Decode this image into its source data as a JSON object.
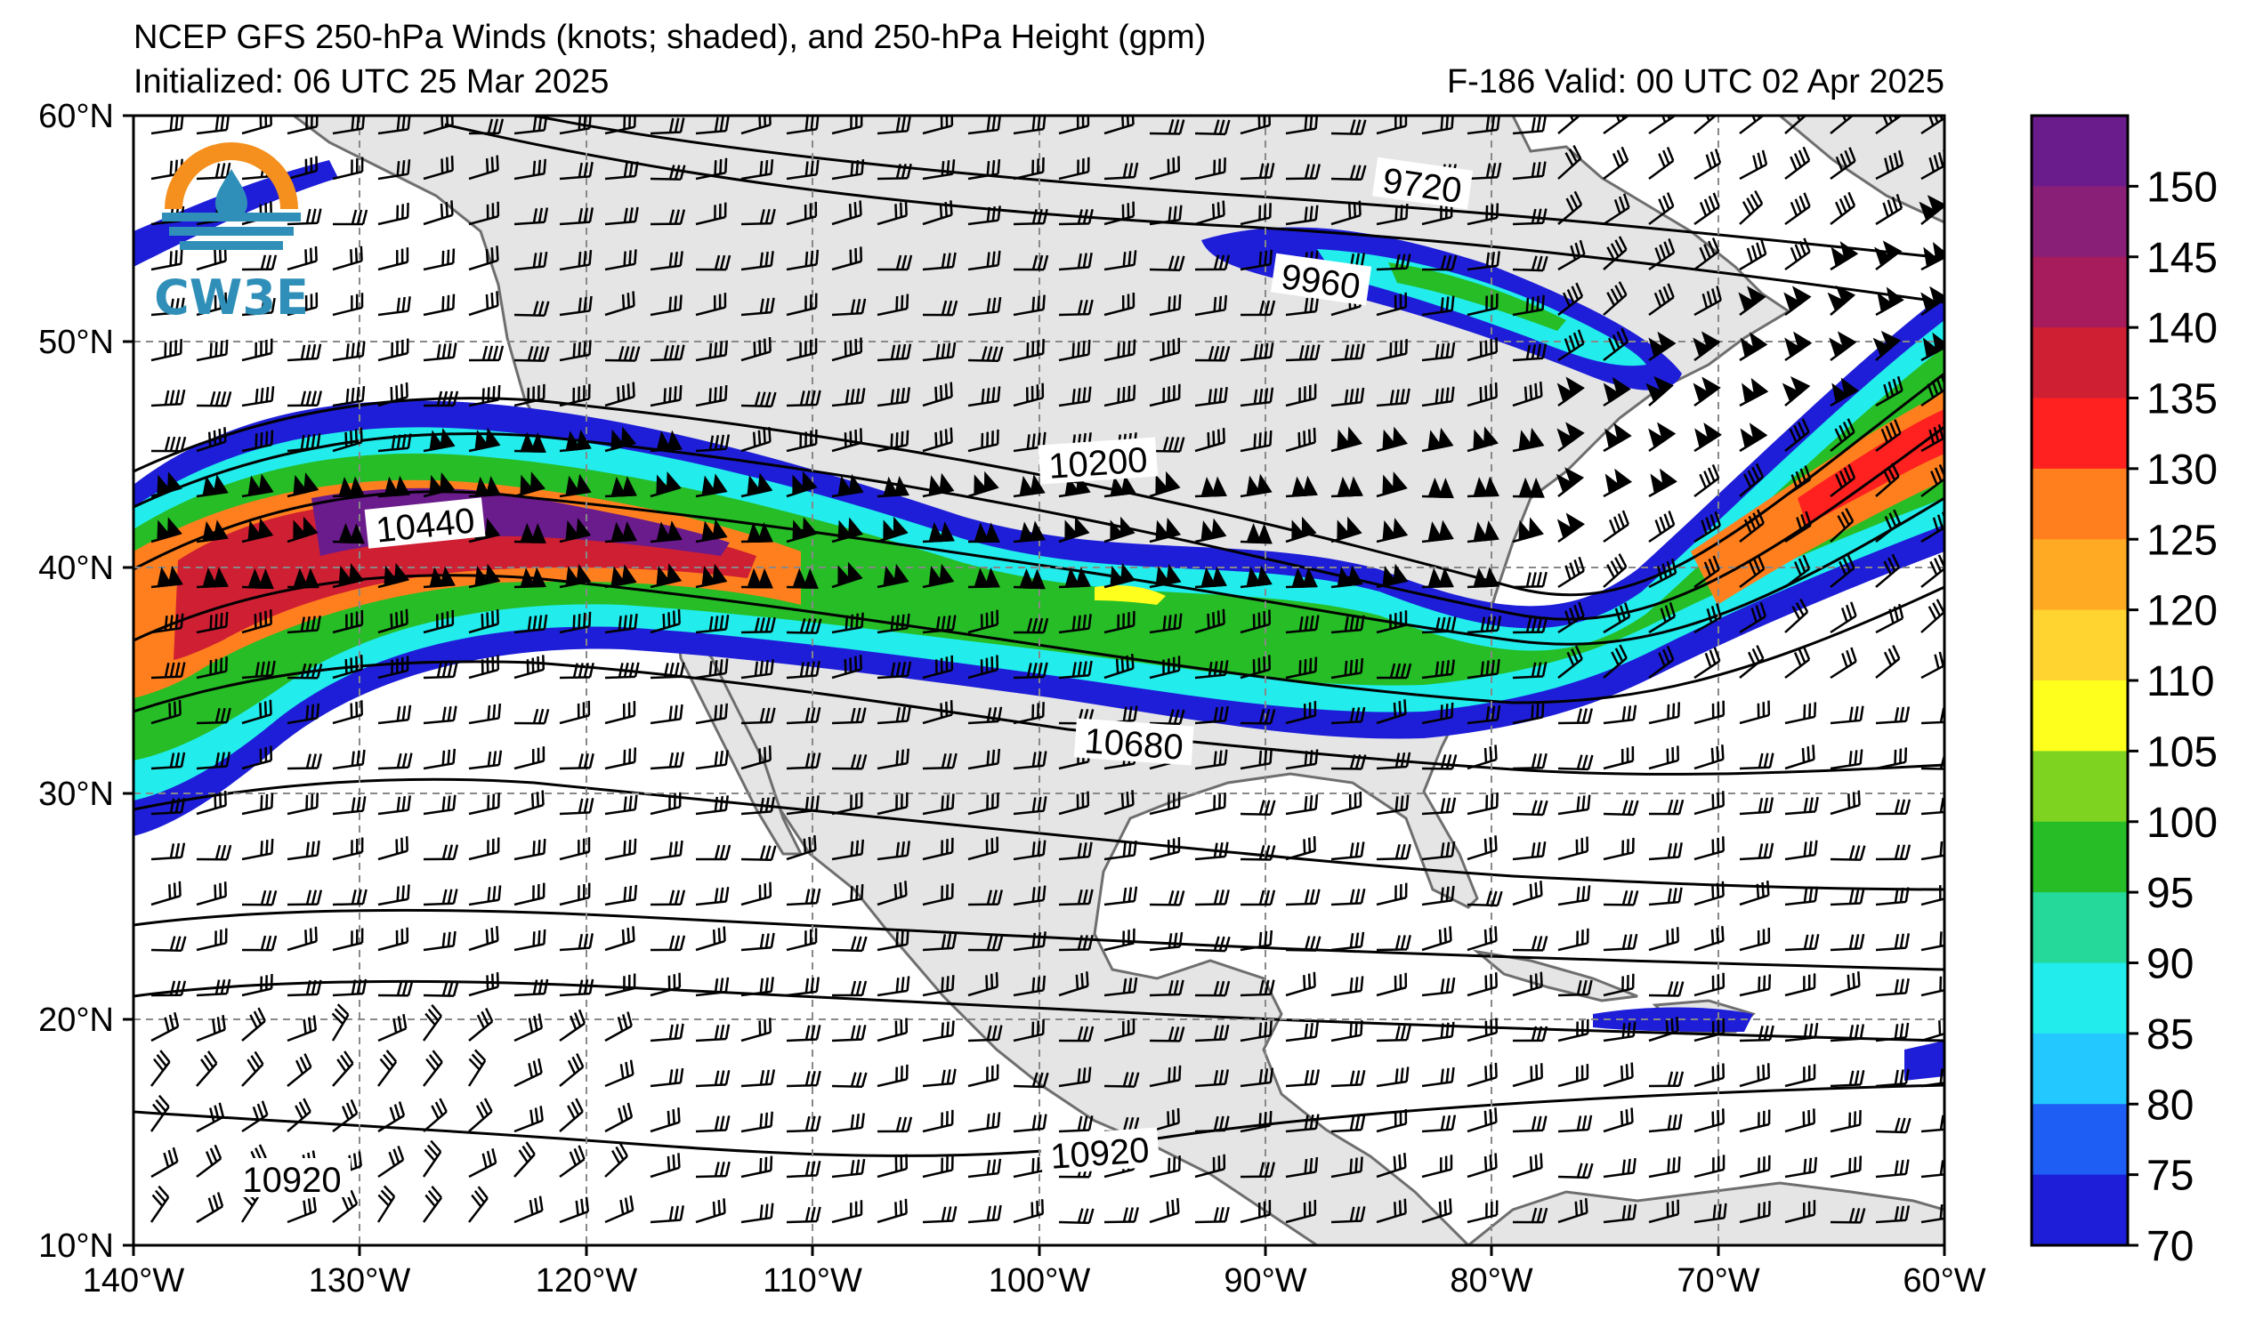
{
  "header": {
    "title": "NCEP GFS 250-hPa Winds (knots; shaded), and 250-hPa Height (gpm)",
    "initialized": "Initialized: 06 UTC 25 Mar 2025",
    "valid": "F-186  Valid: 00 UTC 02 Apr 2025"
  },
  "logo": {
    "text": "CW3E",
    "colors": [
      "#f5901e",
      "#2f8fb8"
    ]
  },
  "axes": {
    "lon_labels": [
      "140°W",
      "130°W",
      "120°W",
      "110°W",
      "100°W",
      "90°W",
      "80°W",
      "70°W",
      "60°W"
    ],
    "lat_labels": [
      "60°N",
      "50°N",
      "40°N",
      "30°N",
      "20°N",
      "10°N"
    ]
  },
  "colorbar": {
    "labels": [
      "150",
      "145",
      "140",
      "135",
      "130",
      "125",
      "120",
      "110",
      "105",
      "100",
      "95",
      "90",
      "85",
      "80",
      "75",
      "70"
    ],
    "colors": [
      "#6a1b8c",
      "#8a1f78",
      "#a61c5c",
      "#cf1f33",
      "#ff2020",
      "#ff7f1e",
      "#ffaa22",
      "#ffd330",
      "#ffff1e",
      "#7ed321",
      "#26bd26",
      "#24d99a",
      "#22ecec",
      "#22c8ff",
      "#1e5ef5",
      "#1e1ed8"
    ]
  },
  "contours": [
    {
      "label": "9720"
    },
    {
      "label": "9960"
    },
    {
      "label": "10200"
    },
    {
      "label": "10440"
    },
    {
      "label": "10680"
    },
    {
      "label": "10920"
    },
    {
      "label": "10920"
    }
  ]
}
